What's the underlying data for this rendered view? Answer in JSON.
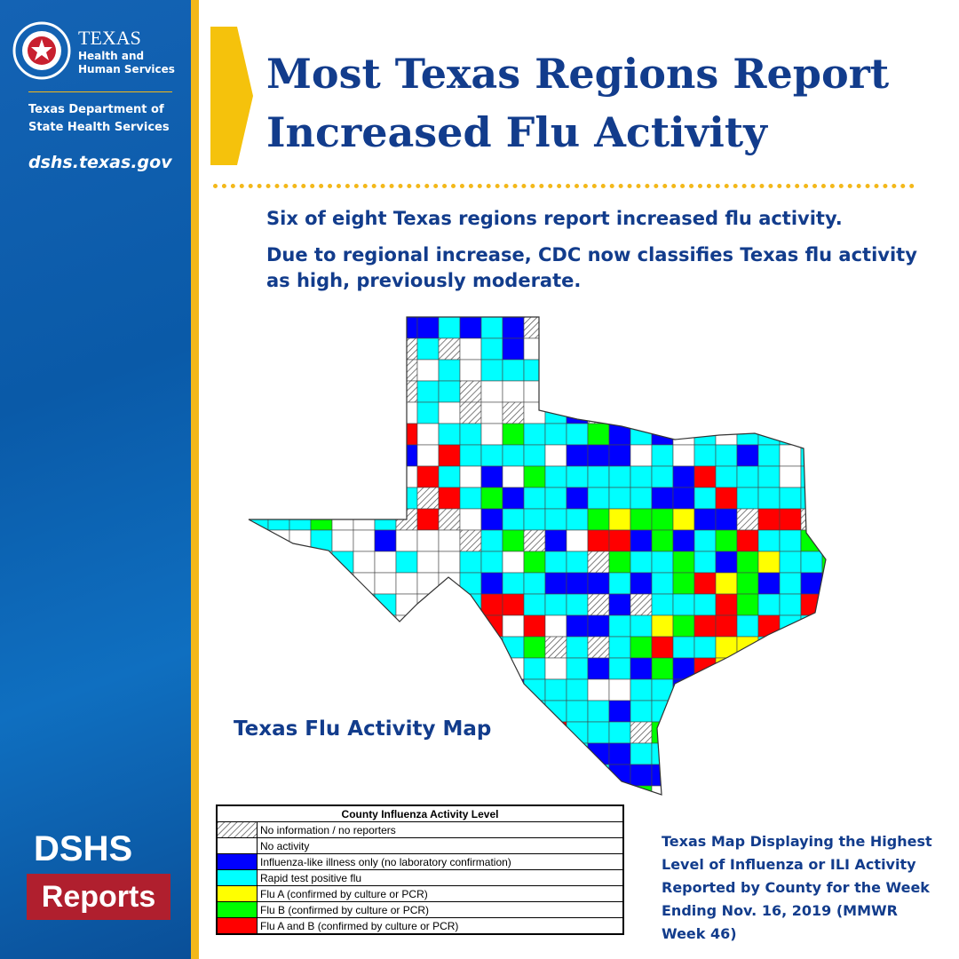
{
  "sidebar": {
    "agency": "TEXAS",
    "agency_sub": "Health and Human Services",
    "department": "Texas Department of State Health Services",
    "url": "dshs.texas.gov",
    "badge_top": "DSHS",
    "badge_bottom": "Reports"
  },
  "header": {
    "title": "Most Texas Regions Report Increased Flu Activity"
  },
  "body": {
    "points": [
      "Six of eight Texas regions report increased flu activity.",
      "Due to regional increase, CDC now classifies Texas flu activity as high, previously moderate."
    ]
  },
  "map": {
    "label": "Texas Flu Activity Map"
  },
  "legend": {
    "title": "County Influenza Activity Level",
    "items": [
      {
        "label": "No information / no reporters",
        "color": "#ffffff",
        "hatched": true
      },
      {
        "label": "No activity",
        "color": "#ffffff"
      },
      {
        "label": "Influenza-like illness only (no laboratory confirmation)",
        "color": "#0000ff"
      },
      {
        "label": "Rapid test positive flu",
        "color": "#00ffff"
      },
      {
        "label": "Flu A (confirmed by culture or PCR)",
        "color": "#ffff00"
      },
      {
        "label": "Flu B (confirmed by culture or PCR)",
        "color": "#00ff00"
      },
      {
        "label": "Flu A and B (confirmed by culture or PCR)",
        "color": "#ff0000"
      }
    ]
  },
  "caption": "Texas Map Displaying the Highest Level of Influenza or ILI Activity Reported by County for the Week Ending Nov. 16, 2019 (MMWR Week 46)"
}
